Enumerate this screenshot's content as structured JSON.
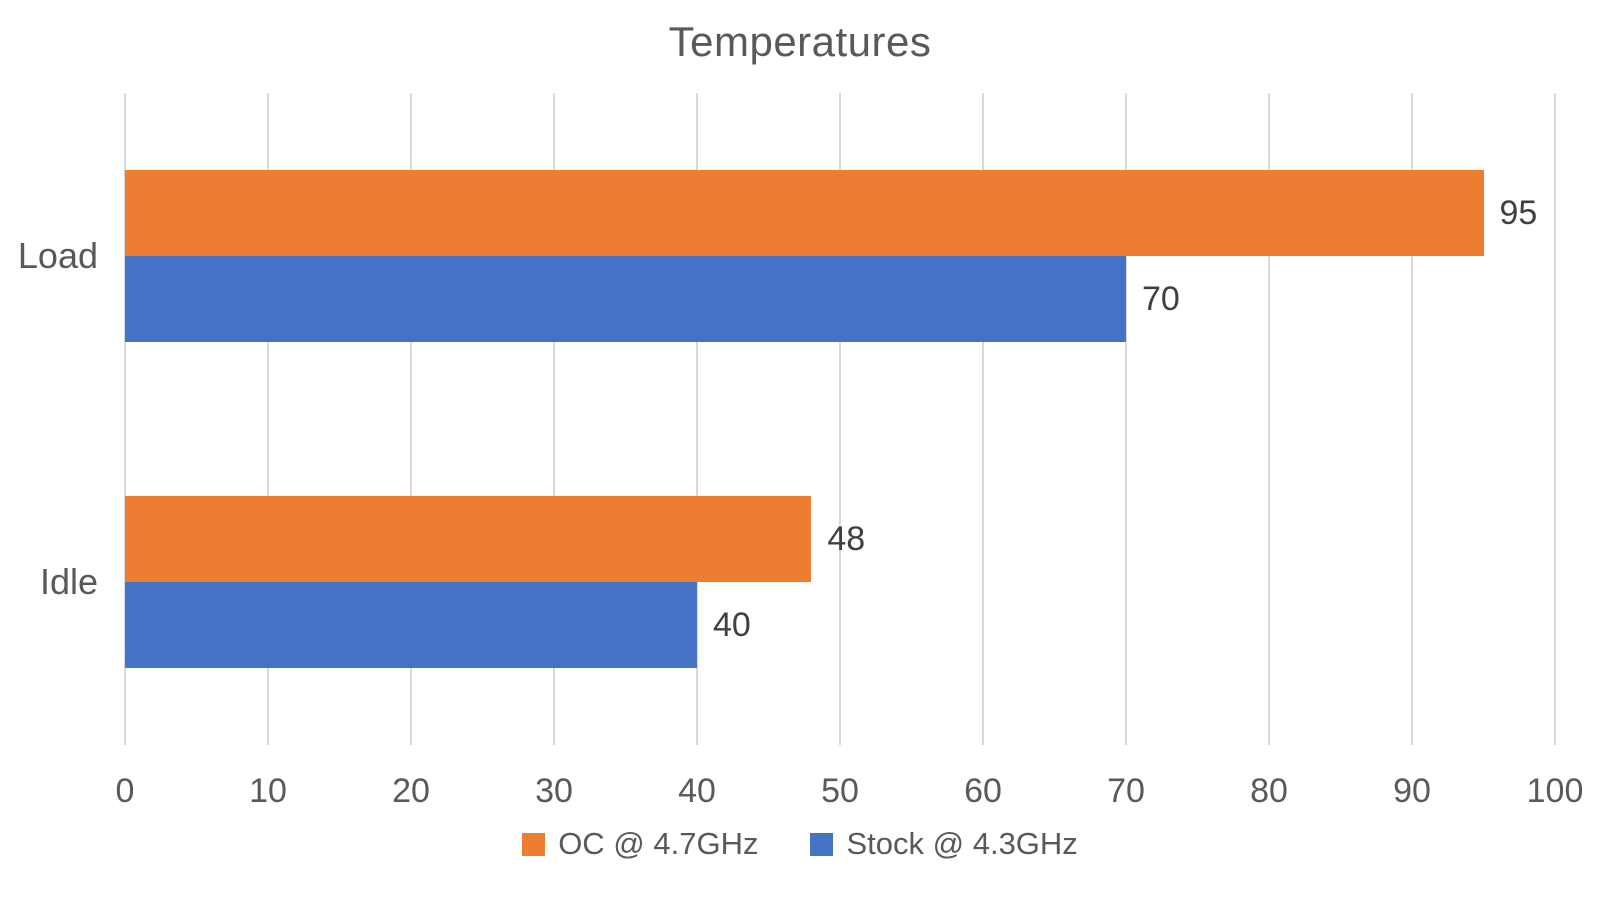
{
  "chart_data": {
    "type": "bar",
    "orientation": "horizontal",
    "title": "Temperatures",
    "categories": [
      "Load",
      "Idle"
    ],
    "series": [
      {
        "name": "OC @ 4.7GHz",
        "color": "#ED7D31",
        "values": [
          95,
          48
        ],
        "data_labels": [
          "95",
          "48"
        ]
      },
      {
        "name": "Stock @ 4.3GHz",
        "color": "#4472C4",
        "values": [
          70,
          40
        ],
        "data_labels": [
          "70",
          "40"
        ]
      }
    ],
    "xlabel": "",
    "ylabel": "",
    "xlim": [
      0,
      100
    ],
    "x_ticks": [
      0,
      10,
      20,
      30,
      40,
      50,
      60,
      70,
      80,
      90,
      100
    ],
    "grid": true,
    "legend_position": "bottom",
    "colors": {
      "gridline": "#D9D9D9",
      "axis_text": "#595959",
      "title_text": "#595959",
      "data_label_text": "#404040",
      "background": "#ffffff"
    }
  }
}
